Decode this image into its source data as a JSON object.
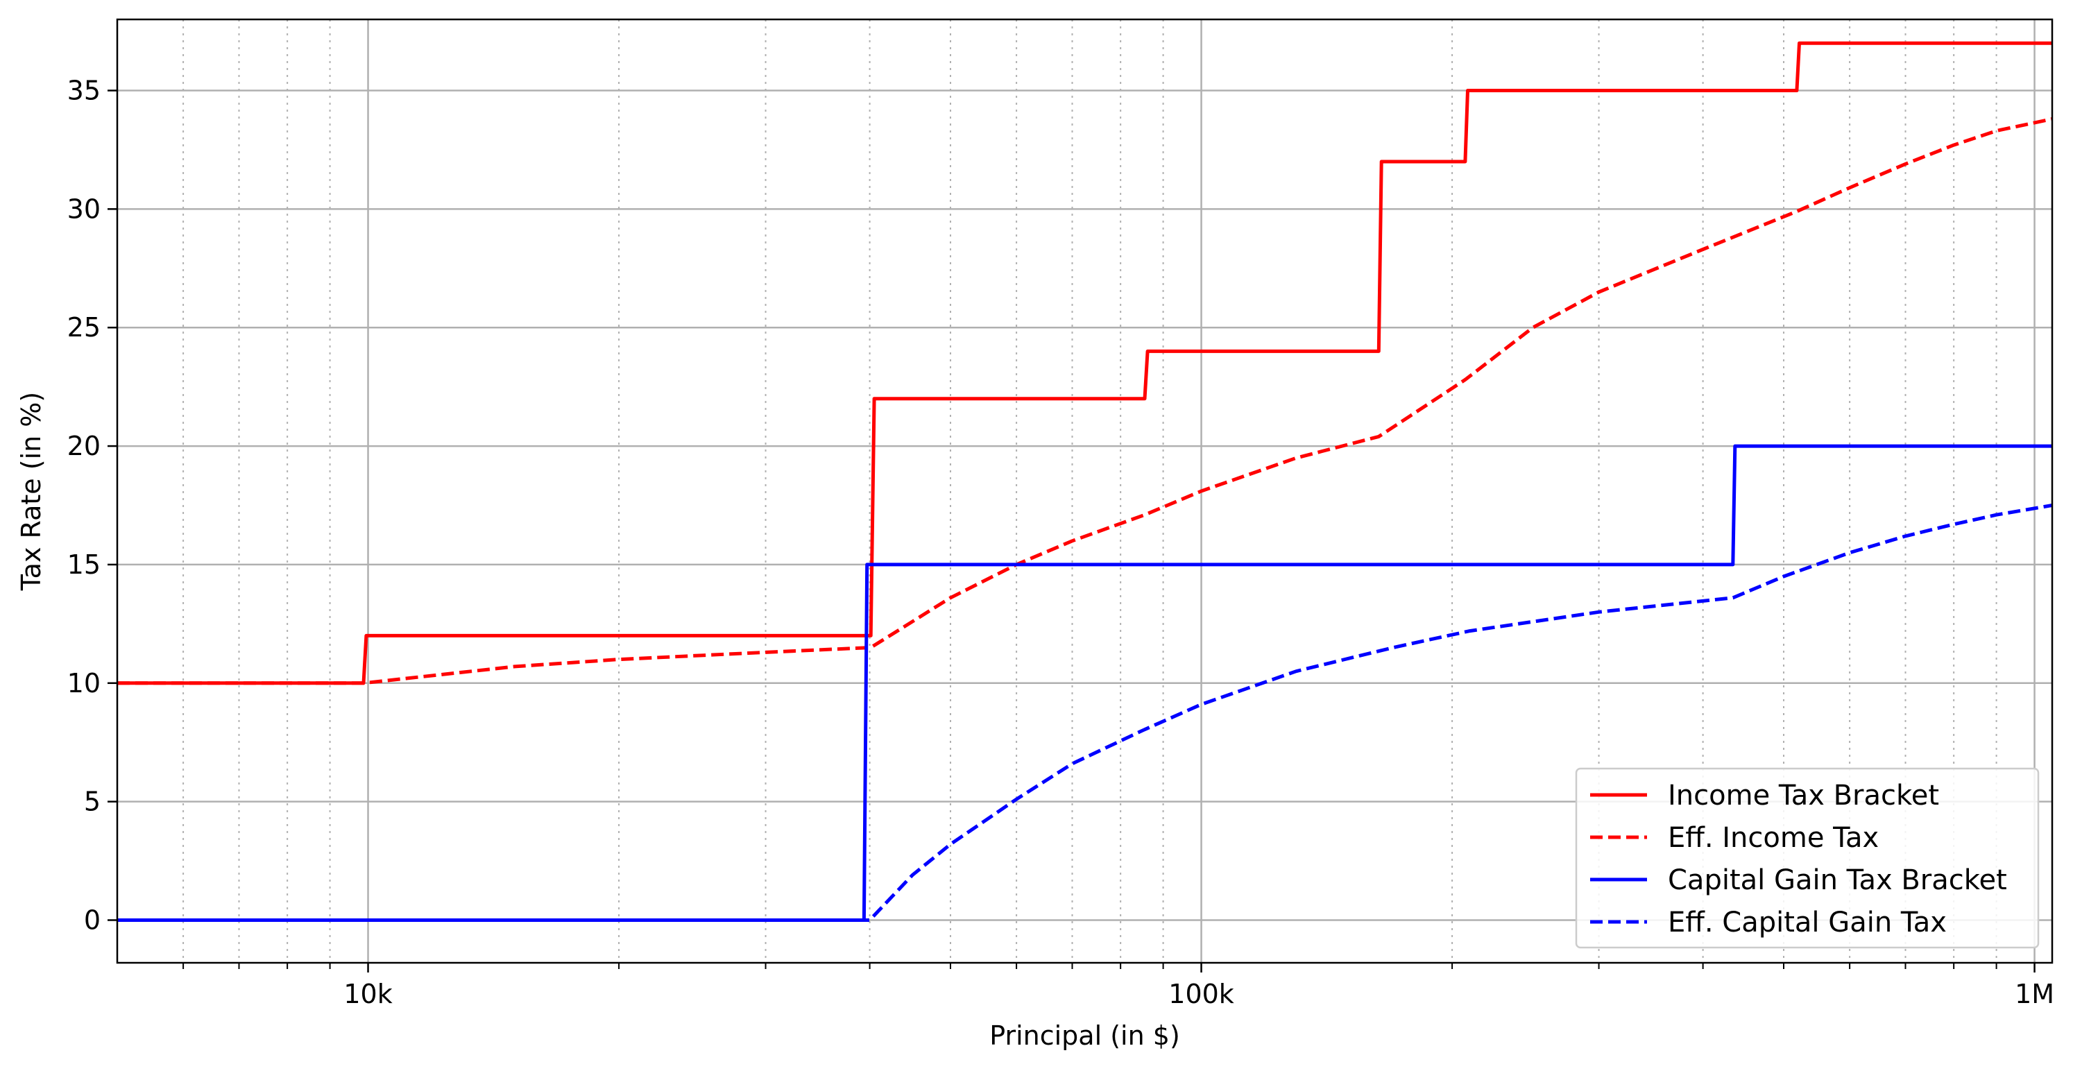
{
  "chart_data": {
    "type": "line",
    "title": "",
    "xlabel": "Principal (in $)",
    "ylabel": "Tax Rate (in %)",
    "xscale": "log",
    "xlim": [
      5000,
      1050000
    ],
    "ylim": [
      -1.8,
      38
    ],
    "xticks": [
      {
        "value": 10000,
        "label": "10k"
      },
      {
        "value": 100000,
        "label": "100k"
      },
      {
        "value": 1000000,
        "label": "1M"
      }
    ],
    "yticks": [
      {
        "value": 0,
        "label": "0"
      },
      {
        "value": 5,
        "label": "5"
      },
      {
        "value": 10,
        "label": "10"
      },
      {
        "value": 15,
        "label": "15"
      },
      {
        "value": 20,
        "label": "20"
      },
      {
        "value": 25,
        "label": "25"
      },
      {
        "value": 30,
        "label": "30"
      },
      {
        "value": 35,
        "label": "35"
      }
    ],
    "grid": "major solid, minor dotted",
    "legend_position": "lower-right",
    "series": [
      {
        "name": "Income Tax Bracket",
        "color": "#ff0000",
        "style": "solid",
        "points": [
          [
            5000,
            10
          ],
          [
            9875,
            10
          ],
          [
            9950,
            12
          ],
          [
            40125,
            12
          ],
          [
            40500,
            22
          ],
          [
            85525,
            22
          ],
          [
            86200,
            24
          ],
          [
            163300,
            24
          ],
          [
            164500,
            32
          ],
          [
            207350,
            32
          ],
          [
            208800,
            35
          ],
          [
            518400,
            35
          ],
          [
            522000,
            37
          ],
          [
            1050000,
            37
          ]
        ]
      },
      {
        "name": "Eff. Income Tax",
        "color": "#ff0000",
        "style": "dashed",
        "points": [
          [
            5000,
            10
          ],
          [
            9875,
            10
          ],
          [
            15000,
            10.7
          ],
          [
            20000,
            11.0
          ],
          [
            30000,
            11.3
          ],
          [
            40125,
            11.5
          ],
          [
            50000,
            13.6
          ],
          [
            60000,
            15.0
          ],
          [
            70000,
            16.0
          ],
          [
            85525,
            17.1
          ],
          [
            100000,
            18.1
          ],
          [
            130000,
            19.5
          ],
          [
            163300,
            20.4
          ],
          [
            207350,
            22.8
          ],
          [
            250000,
            25.0
          ],
          [
            300000,
            26.5
          ],
          [
            400000,
            28.3
          ],
          [
            518400,
            29.9
          ],
          [
            600000,
            30.9
          ],
          [
            700000,
            31.9
          ],
          [
            800000,
            32.7
          ],
          [
            900000,
            33.3
          ],
          [
            1050000,
            33.8
          ]
        ]
      },
      {
        "name": "Capital Gain Tax Bracket",
        "color": "#0000ff",
        "style": "solid",
        "points": [
          [
            5000,
            0
          ],
          [
            39375,
            0
          ],
          [
            39700,
            15
          ],
          [
            434550,
            15
          ],
          [
            437000,
            20
          ],
          [
            1050000,
            20
          ]
        ]
      },
      {
        "name": "Eff. Capital Gain Tax",
        "color": "#0000ff",
        "style": "dashed",
        "points": [
          [
            5000,
            0
          ],
          [
            40000,
            0
          ],
          [
            45000,
            1.9
          ],
          [
            50000,
            3.2
          ],
          [
            60000,
            5.1
          ],
          [
            70000,
            6.6
          ],
          [
            85000,
            8.0
          ],
          [
            100000,
            9.1
          ],
          [
            130000,
            10.5
          ],
          [
            170000,
            11.5
          ],
          [
            210000,
            12.2
          ],
          [
            300000,
            13.0
          ],
          [
            434550,
            13.6
          ],
          [
            500000,
            14.5
          ],
          [
            600000,
            15.5
          ],
          [
            700000,
            16.2
          ],
          [
            800000,
            16.7
          ],
          [
            900000,
            17.1
          ],
          [
            1050000,
            17.5
          ]
        ]
      }
    ]
  }
}
